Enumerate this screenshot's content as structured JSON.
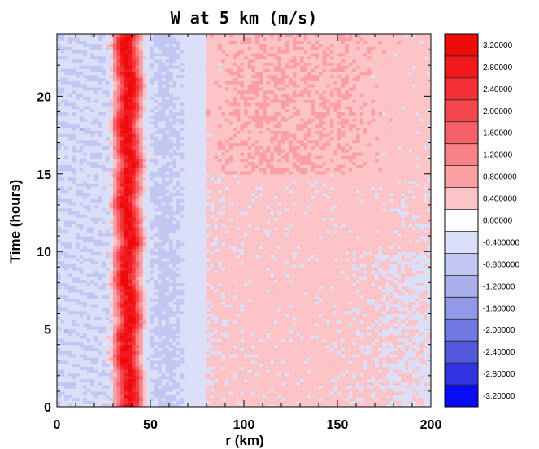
{
  "chart_data": {
    "type": "heatmap",
    "title": "W at 5 km (m/s)",
    "xlabel": "r (km)",
    "ylabel": "Time (hours)",
    "xlim": [
      0,
      200
    ],
    "ylim": [
      0,
      24
    ],
    "xticks": [
      0,
      50,
      100,
      150,
      200
    ],
    "yticks": [
      0,
      5,
      10,
      15,
      20
    ],
    "xtick_labels": [
      "0",
      "50",
      "100",
      "150",
      "200"
    ],
    "ytick_labels": [
      "0",
      "5",
      "10",
      "15",
      "20"
    ],
    "colorbar": {
      "labels": [
        "3.20000",
        "2.80000",
        "2.40000",
        "2.00000",
        "1.60000",
        "1.20000",
        "0.800000",
        "0.400000",
        "0.00000",
        "-0.400000",
        "-0.800000",
        "-1.20000",
        "-1.60000",
        "-2.00000",
        "-2.40000",
        "-2.80000",
        "-3.20000"
      ],
      "levels": [
        3.2,
        2.8,
        2.4,
        2.0,
        1.6,
        1.2,
        0.8,
        0.4,
        0.0,
        -0.4,
        -0.8,
        -1.2,
        -1.6,
        -2.0,
        -2.4,
        -2.8,
        -3.2
      ],
      "colors": [
        "#ee0b0b",
        "#f2181e",
        "#f23036",
        "#f4474d",
        "#f66268",
        "#f88287",
        "#fa9fa3",
        "#fcc4c7",
        "#ffffff",
        "#dcdff8",
        "#c2c7f1",
        "#aab0ec",
        "#9198e7",
        "#7278e1",
        "#5258da",
        "#2f33e0",
        "#0a0bf5"
      ]
    },
    "features": {
      "updraft_ring_r_km": [
        30,
        48
      ],
      "updraft_center_r_km": 38,
      "updraft_max_w": 3.2,
      "downdraft_outer_r_km": [
        45,
        80
      ],
      "weak_updraft_region_r_km": [
        80,
        200
      ],
      "time_range_hours": [
        0,
        24
      ]
    }
  }
}
